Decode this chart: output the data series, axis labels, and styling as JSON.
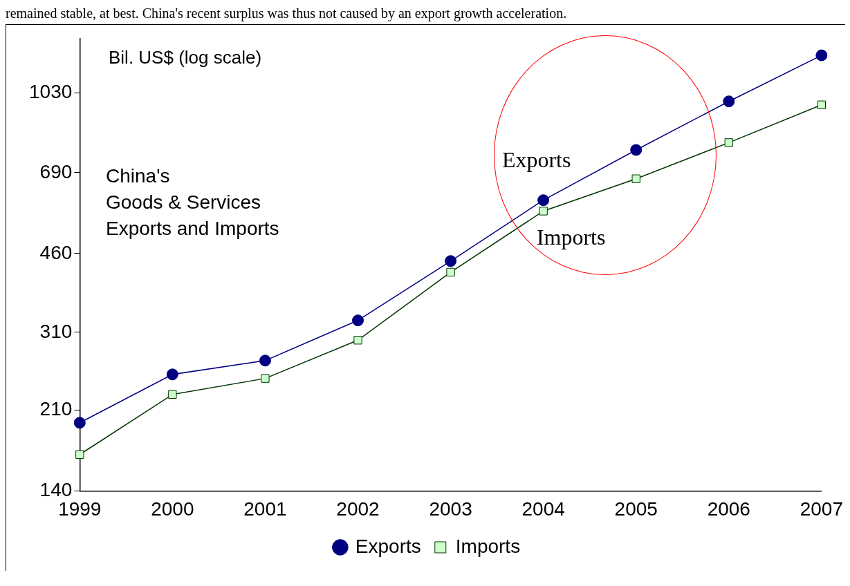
{
  "chart_data": {
    "type": "line",
    "title": "China's\nGoods & Services\nExports and Imports",
    "ylabel": "Bil. US$ (log scale)",
    "annotations": [
      "remained stable, at best. China's recent surplus was thus not caused by an export growth acceleration."
    ],
    "categories": [
      "1999",
      "2000",
      "2001",
      "2002",
      "2003",
      "2004",
      "2005",
      "2006",
      "2007"
    ],
    "series": [
      {
        "name": "Exports",
        "color": "#000080",
        "marker": "circle",
        "values": [
          197,
          251,
          269,
          329,
          443,
          601,
          773,
          986,
          1242
        ]
      },
      {
        "name": "Imports",
        "color": "#003300",
        "marker": "square",
        "values": [
          168,
          227,
          246,
          298,
          419,
          569,
          669,
          802,
          969
        ]
      }
    ],
    "log": true,
    "ylim": [
      140,
      1350
    ],
    "yticks": [
      140,
      210,
      310,
      460,
      690,
      1030
    ],
    "grid": false,
    "legend": "bottom"
  }
}
